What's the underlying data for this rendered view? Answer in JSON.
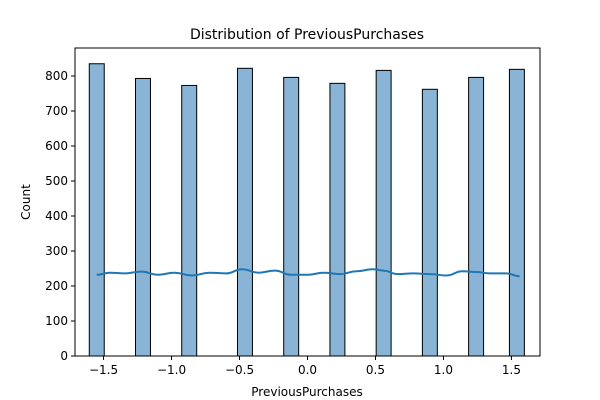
{
  "chart_data": {
    "type": "bar",
    "title": "Distribution of PreviousPurchases",
    "xlabel": "PreviousPurchases",
    "ylabel": "Count",
    "xlim": [
      -1.71,
      1.71
    ],
    "ylim": [
      0,
      880
    ],
    "xticks": [
      -1.5,
      -1.0,
      -0.5,
      0.0,
      0.5,
      1.0,
      1.5
    ],
    "xtick_labels": [
      "−1.5",
      "−1.0",
      "−0.5",
      "0.0",
      "0.5",
      "1.0",
      "1.5"
    ],
    "yticks": [
      0,
      100,
      200,
      300,
      400,
      500,
      600,
      700,
      800
    ],
    "ytick_labels": [
      "0",
      "100",
      "200",
      "300",
      "400",
      "500",
      "600",
      "700",
      "800"
    ],
    "bar_color": "#89b4d5",
    "bar_edge_color": "#000000",
    "kde_color": "#1f77b4",
    "bins": [
      {
        "x0": -1.605,
        "x1": -1.495,
        "count": 835
      },
      {
        "x0": -1.265,
        "x1": -1.155,
        "count": 793
      },
      {
        "x0": -0.925,
        "x1": -0.815,
        "count": 773
      },
      {
        "x0": -0.515,
        "x1": -0.405,
        "count": 822
      },
      {
        "x0": -0.175,
        "x1": -0.065,
        "count": 796
      },
      {
        "x0": 0.165,
        "x1": 0.275,
        "count": 779
      },
      {
        "x0": 0.505,
        "x1": 0.615,
        "count": 816
      },
      {
        "x0": 0.845,
        "x1": 0.955,
        "count": 762
      },
      {
        "x0": 1.185,
        "x1": 1.295,
        "count": 796
      },
      {
        "x0": 1.485,
        "x1": 1.595,
        "count": 819
      }
    ],
    "kde": {
      "x": [
        -1.55,
        -1.45,
        -1.35,
        -1.22,
        -1.1,
        -0.98,
        -0.85,
        -0.72,
        -0.6,
        -0.48,
        -0.36,
        -0.24,
        -0.12,
        0.0,
        0.12,
        0.24,
        0.36,
        0.48,
        0.56,
        0.66,
        0.78,
        0.9,
        1.02,
        1.14,
        1.24,
        1.34,
        1.46,
        1.56
      ],
      "y": [
        232,
        238,
        236,
        241,
        232,
        238,
        230,
        238,
        236,
        248,
        238,
        244,
        232,
        232,
        238,
        234,
        242,
        248,
        244,
        234,
        236,
        234,
        230,
        242,
        240,
        236,
        236,
        228
      ]
    }
  }
}
